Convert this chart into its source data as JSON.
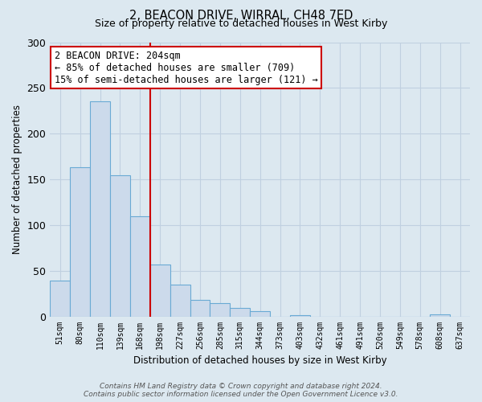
{
  "title": "2, BEACON DRIVE, WIRRAL, CH48 7ED",
  "subtitle": "Size of property relative to detached houses in West Kirby",
  "xlabel": "Distribution of detached houses by size in West Kirby",
  "ylabel": "Number of detached properties",
  "categories": [
    "51sqm",
    "80sqm",
    "110sqm",
    "139sqm",
    "168sqm",
    "198sqm",
    "227sqm",
    "256sqm",
    "285sqm",
    "315sqm",
    "344sqm",
    "373sqm",
    "403sqm",
    "432sqm",
    "461sqm",
    "491sqm",
    "520sqm",
    "549sqm",
    "578sqm",
    "608sqm",
    "637sqm"
  ],
  "values": [
    39,
    163,
    235,
    154,
    110,
    57,
    35,
    18,
    15,
    9,
    6,
    0,
    1,
    0,
    0,
    0,
    0,
    0,
    0,
    2,
    0
  ],
  "bar_color": "#ccdaeb",
  "bar_edge_color": "#6aaad4",
  "highlight_line_color": "#cc0000",
  "annotation_line1": "2 BEACON DRIVE: 204sqm",
  "annotation_line2": "← 85% of detached houses are smaller (709)",
  "annotation_line3": "15% of semi-detached houses are larger (121) →",
  "annotation_box_color": "#ffffff",
  "annotation_box_edge": "#cc0000",
  "ylim": [
    0,
    300
  ],
  "yticks": [
    0,
    50,
    100,
    150,
    200,
    250,
    300
  ],
  "footer_text": "Contains HM Land Registry data © Crown copyright and database right 2024.\nContains public sector information licensed under the Open Government Licence v3.0.",
  "background_color": "#dce8f0",
  "grid_color": "#c0d0e0"
}
